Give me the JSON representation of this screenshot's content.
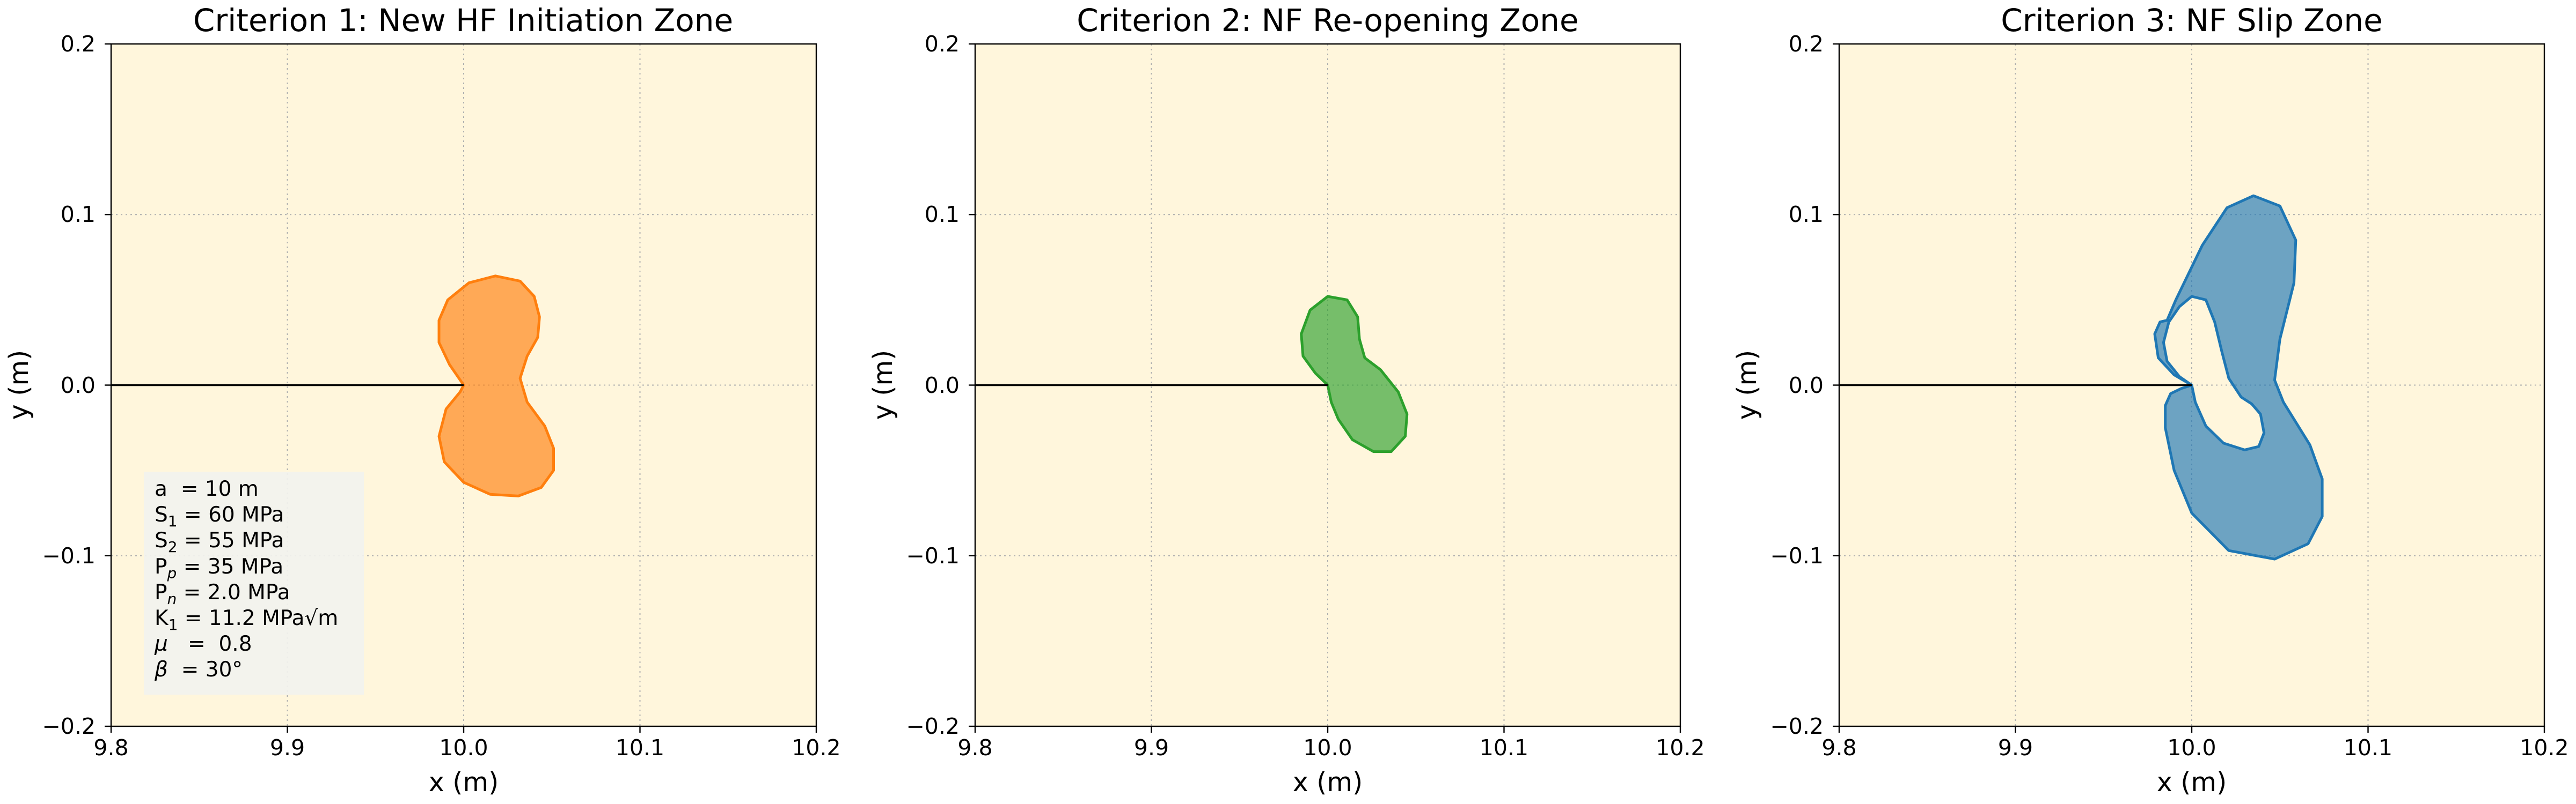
{
  "chart_data": [
    {
      "type": "area",
      "title": "Criterion 1: New HF Initiation Zone",
      "xlabel": "x (m)",
      "ylabel": "y (m)",
      "xlim": [
        9.8,
        10.2
      ],
      "ylim": [
        -0.2,
        0.2
      ],
      "xticks": [
        "9.8",
        "9.9",
        "10.0",
        "10.1",
        "10.2"
      ],
      "yticks": [
        "−0.2",
        "−0.1",
        "0.0",
        "0.1",
        "0.2"
      ],
      "grid": true,
      "crack": {
        "x": [
          9.8,
          10.0
        ],
        "y": [
          0,
          0
        ]
      },
      "region": {
        "color": "#ff7f0e",
        "x": [
          10.0,
          9.992,
          9.986,
          9.986,
          9.991,
          10.003,
          10.018,
          10.032,
          10.04,
          10.043,
          10.042,
          10.036,
          10.032,
          10.036,
          10.046,
          10.051,
          10.051,
          10.044,
          10.031,
          10.015,
          10.0,
          9.989,
          9.986,
          9.99,
          9.998,
          10.0
        ],
        "y": [
          0.0,
          0.012,
          0.025,
          0.038,
          0.05,
          0.06,
          0.064,
          0.061,
          0.052,
          0.04,
          0.028,
          0.017,
          0.004,
          -0.01,
          -0.024,
          -0.037,
          -0.05,
          -0.06,
          -0.065,
          -0.064,
          -0.057,
          -0.045,
          -0.03,
          -0.014,
          -0.004,
          0.0
        ]
      },
      "parameters_box": {
        "location": "lower-left",
        "lines": [
          {
            "label": "a",
            "sub": "",
            "text": "  = 10 m"
          },
          {
            "label": "S",
            "sub": "1",
            "text": " = 60 MPa"
          },
          {
            "label": "S",
            "sub": "2",
            "text": " = 55 MPa"
          },
          {
            "label": "P",
            "sub": "p",
            "text": " = 35 MPa"
          },
          {
            "label": "P",
            "sub": "n",
            "text": " = 2.0 MPa"
          },
          {
            "label": "K",
            "sub": "1",
            "text": " = 11.2 MPa√m"
          },
          {
            "label": "μ",
            "sub": "",
            "text": "   =  0.8"
          },
          {
            "label": "β",
            "sub": "",
            "text": "  = 30°"
          }
        ]
      }
    },
    {
      "type": "area",
      "title": "Criterion 2: NF Re-opening Zone",
      "xlabel": "x (m)",
      "ylabel": "y (m)",
      "xlim": [
        9.8,
        10.2
      ],
      "ylim": [
        -0.2,
        0.2
      ],
      "xticks": [
        "9.8",
        "9.9",
        "10.0",
        "10.1",
        "10.2"
      ],
      "yticks": [
        "−0.2",
        "−0.1",
        "0.0",
        "0.1",
        "0.2"
      ],
      "grid": true,
      "crack": {
        "x": [
          9.8,
          10.0
        ],
        "y": [
          0,
          0
        ]
      },
      "region": {
        "color": "#2ca02c",
        "x": [
          10.0,
          9.993,
          9.986,
          9.985,
          9.99,
          10.0,
          10.011,
          10.017,
          10.018,
          10.021,
          10.03,
          10.04,
          10.045,
          10.044,
          10.036,
          10.026,
          10.014,
          10.006,
          10.002,
          10.0
        ],
        "y": [
          0.0,
          0.007,
          0.017,
          0.03,
          0.044,
          0.052,
          0.05,
          0.04,
          0.027,
          0.016,
          0.009,
          -0.004,
          -0.017,
          -0.03,
          -0.039,
          -0.039,
          -0.032,
          -0.02,
          -0.01,
          0.0
        ]
      }
    },
    {
      "type": "area",
      "title": "Criterion 3: NF Slip Zone",
      "xlabel": "x (m)",
      "ylabel": "y (m)",
      "xlim": [
        9.8,
        10.2
      ],
      "ylim": [
        -0.2,
        0.2
      ],
      "xticks": [
        "9.8",
        "9.9",
        "10.0",
        "10.1",
        "10.2"
      ],
      "yticks": [
        "−0.2",
        "−0.1",
        "0.0",
        "0.1",
        "0.2"
      ],
      "grid": true,
      "crack": {
        "x": [
          9.8,
          10.0
        ],
        "y": [
          0,
          0
        ]
      },
      "region": {
        "color": "#1f77b4",
        "outer": {
          "x": [
            10.0,
            9.99,
            9.981,
            9.979,
            9.982,
            9.986,
            9.991,
            10.006,
            10.02,
            10.035,
            10.05,
            10.059,
            10.058,
            10.05,
            10.047,
            10.052,
            10.067,
            10.074,
            10.074,
            10.066,
            10.047,
            10.021,
            10.0,
            9.99,
            9.985,
            9.985,
            9.988,
            9.994,
            10.0
          ],
          "y": [
            0.0,
            0.006,
            0.016,
            0.03,
            0.037,
            0.038,
            0.05,
            0.082,
            0.104,
            0.111,
            0.105,
            0.085,
            0.06,
            0.027,
            0.003,
            -0.01,
            -0.035,
            -0.055,
            -0.077,
            -0.093,
            -0.102,
            -0.097,
            -0.075,
            -0.05,
            -0.025,
            -0.012,
            -0.005,
            -0.002,
            0.0
          ]
        },
        "hole": {
          "x": [
            10.0,
            9.993,
            9.986,
            9.984,
            9.987,
            9.993,
            10.0,
            10.008,
            10.013,
            10.017,
            10.021,
            10.028,
            10.034,
            10.039,
            10.041,
            10.038,
            10.03,
            10.018,
            10.008,
            10.002,
            10.0
          ],
          "y": [
            0.0,
            0.005,
            0.014,
            0.025,
            0.037,
            0.046,
            0.052,
            0.05,
            0.037,
            0.02,
            0.004,
            -0.007,
            -0.011,
            -0.017,
            -0.028,
            -0.036,
            -0.038,
            -0.034,
            -0.024,
            -0.01,
            0.0
          ]
        }
      }
    }
  ]
}
